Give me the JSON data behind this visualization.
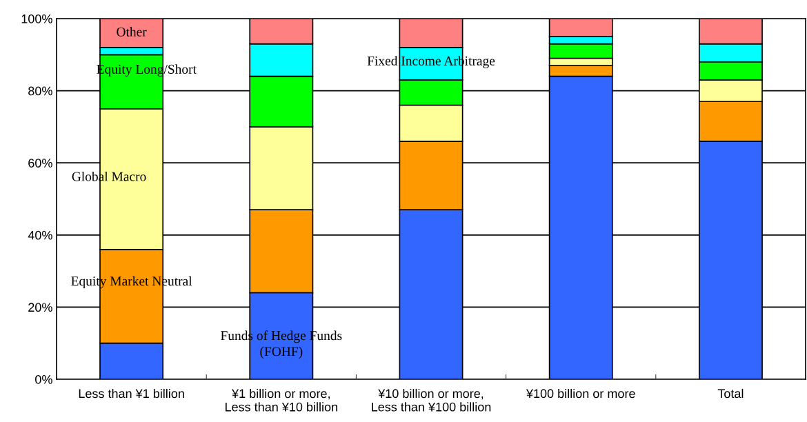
{
  "chart_data": {
    "type": "bar",
    "stacked": true,
    "categories": [
      "Less than ¥1 billion",
      "¥1 billion or more,\nLess than ¥10 billion",
      "¥10 billion or more,\nLess than ¥100 billion",
      "¥100 billion or more",
      "Total"
    ],
    "series": [
      {
        "name": "Funds of Hedge Funds\n(FOHF)",
        "color": "#3366ff",
        "values": [
          10,
          24,
          47,
          84,
          66
        ]
      },
      {
        "name": "Equity Market Neutral",
        "color": "#ff9900",
        "values": [
          26,
          23,
          19,
          3,
          11
        ]
      },
      {
        "name": "Global Macro",
        "color": "#ffff99",
        "values": [
          39,
          23,
          10,
          2,
          6
        ]
      },
      {
        "name": "Equity Long/Short",
        "color": "#00ff00",
        "values": [
          15,
          14,
          7,
          4,
          5
        ]
      },
      {
        "name": "Fixed Income Arbitrage",
        "color": "#00ffff",
        "values": [
          2,
          9,
          9,
          2,
          5
        ]
      },
      {
        "name": "Other",
        "color": "#ff8080",
        "values": [
          8,
          7,
          8,
          5,
          7
        ]
      }
    ],
    "ylim": [
      0,
      100
    ],
    "yticks": [
      {
        "value": 0,
        "label": "0%"
      },
      {
        "value": 20,
        "label": "20%"
      },
      {
        "value": 40,
        "label": "40%"
      },
      {
        "value": 60,
        "label": "60%"
      },
      {
        "value": 80,
        "label": "80%"
      },
      {
        "value": 100,
        "label": "100%"
      }
    ],
    "grid": "y",
    "legend": false
  }
}
